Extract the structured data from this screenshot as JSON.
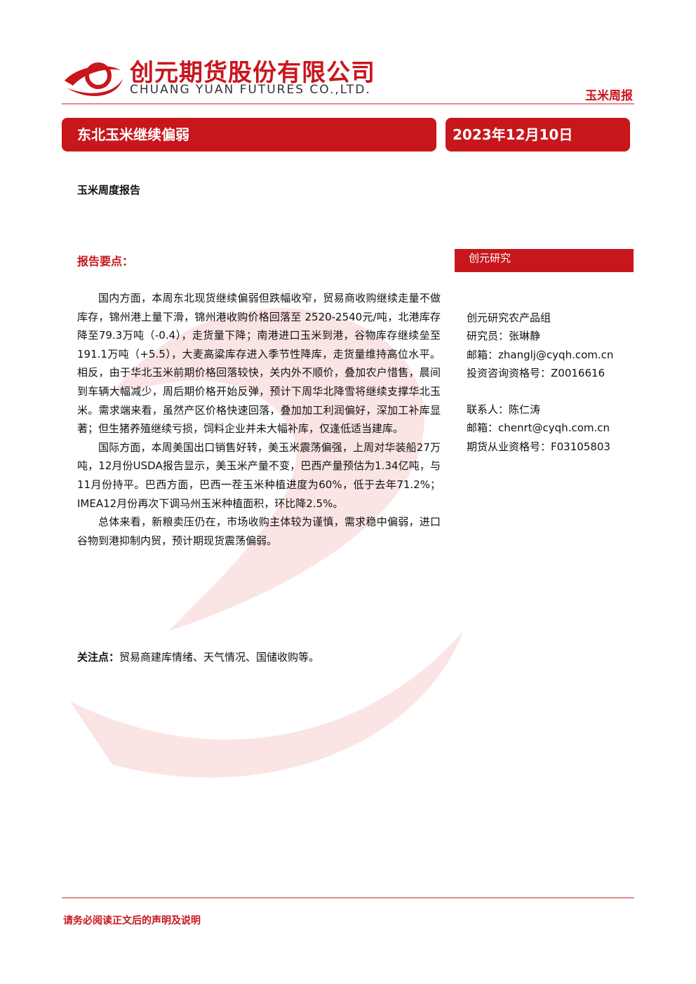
{
  "header": {
    "company_cn": "创元期货股份有限公司",
    "company_en": "CHUANG YUAN FUTURES CO.,LTD.",
    "report_type": "玉米周报"
  },
  "banner": {
    "title": "东北玉米继续偏弱",
    "date": "2023年12月10日"
  },
  "subtitle": "玉米周度报告",
  "summary": {
    "heading": "报告要点：",
    "paragraphs": [
      "国内方面，本周东北现货继续偏弱但跌幅收窄，贸易商收购继续走量不做库存，锦州港上量下滑，锦州港收购价格回落至 2520-2540元/吨，北港库存降至79.3万吨（-0.4），走货量下降；南港进口玉米到港，谷物库存继续垒至191.1万吨（+5.5），大麦高粱库存进入季节性降库，走货量维持高位水平。相反，由于华北玉米前期价格回落较快，关内外不顺价，叠加农户惜售，晨间到车辆大幅减少，周后期价格开始反弹，预计下周华北降雪将继续支撑华北玉米。需求端来看，虽然产区价格快速回落，叠加加工利润偏好，深加工补库显著；但生猪养殖继续亏损，饲料企业并未大幅补库，仅逢低适当建库。",
      "国际方面，本周美国出口销售好转，美玉米震荡偏强，上周对华装船27万吨，12月份USDA报告显示，美玉米产量不变，巴西产量预估为1.34亿吨，与11月份持平。巴西方面，巴西一茬玉米种植进度为60%，低于去年71.2%；IMEA12月份再次下调马州玉米种植面积，环比降2.5%。",
      "总体来看，新粮卖压仍在，市场收购主体较为谨慎，需求稳中偏弱，进口谷物到港抑制内贸，预计期现货震荡偏弱。"
    ],
    "focus_label": "关注点：",
    "focus_text": "贸易商建库情绪、天气情况、国储收购等。"
  },
  "sidebar": {
    "heading": "创元研究",
    "group1": [
      "创元研究农产品组",
      "研究员：张琳静",
      "邮箱：zhanglj@cyqh.com.cn",
      "投资咨询资格号：Z0016616"
    ],
    "group2": [
      "联系人：陈仁涛",
      "邮箱：chenrt@cyqh.com.cn",
      "期货从业资格号：F03105803"
    ]
  },
  "footer": "请务必阅读正文后的声明及说明"
}
